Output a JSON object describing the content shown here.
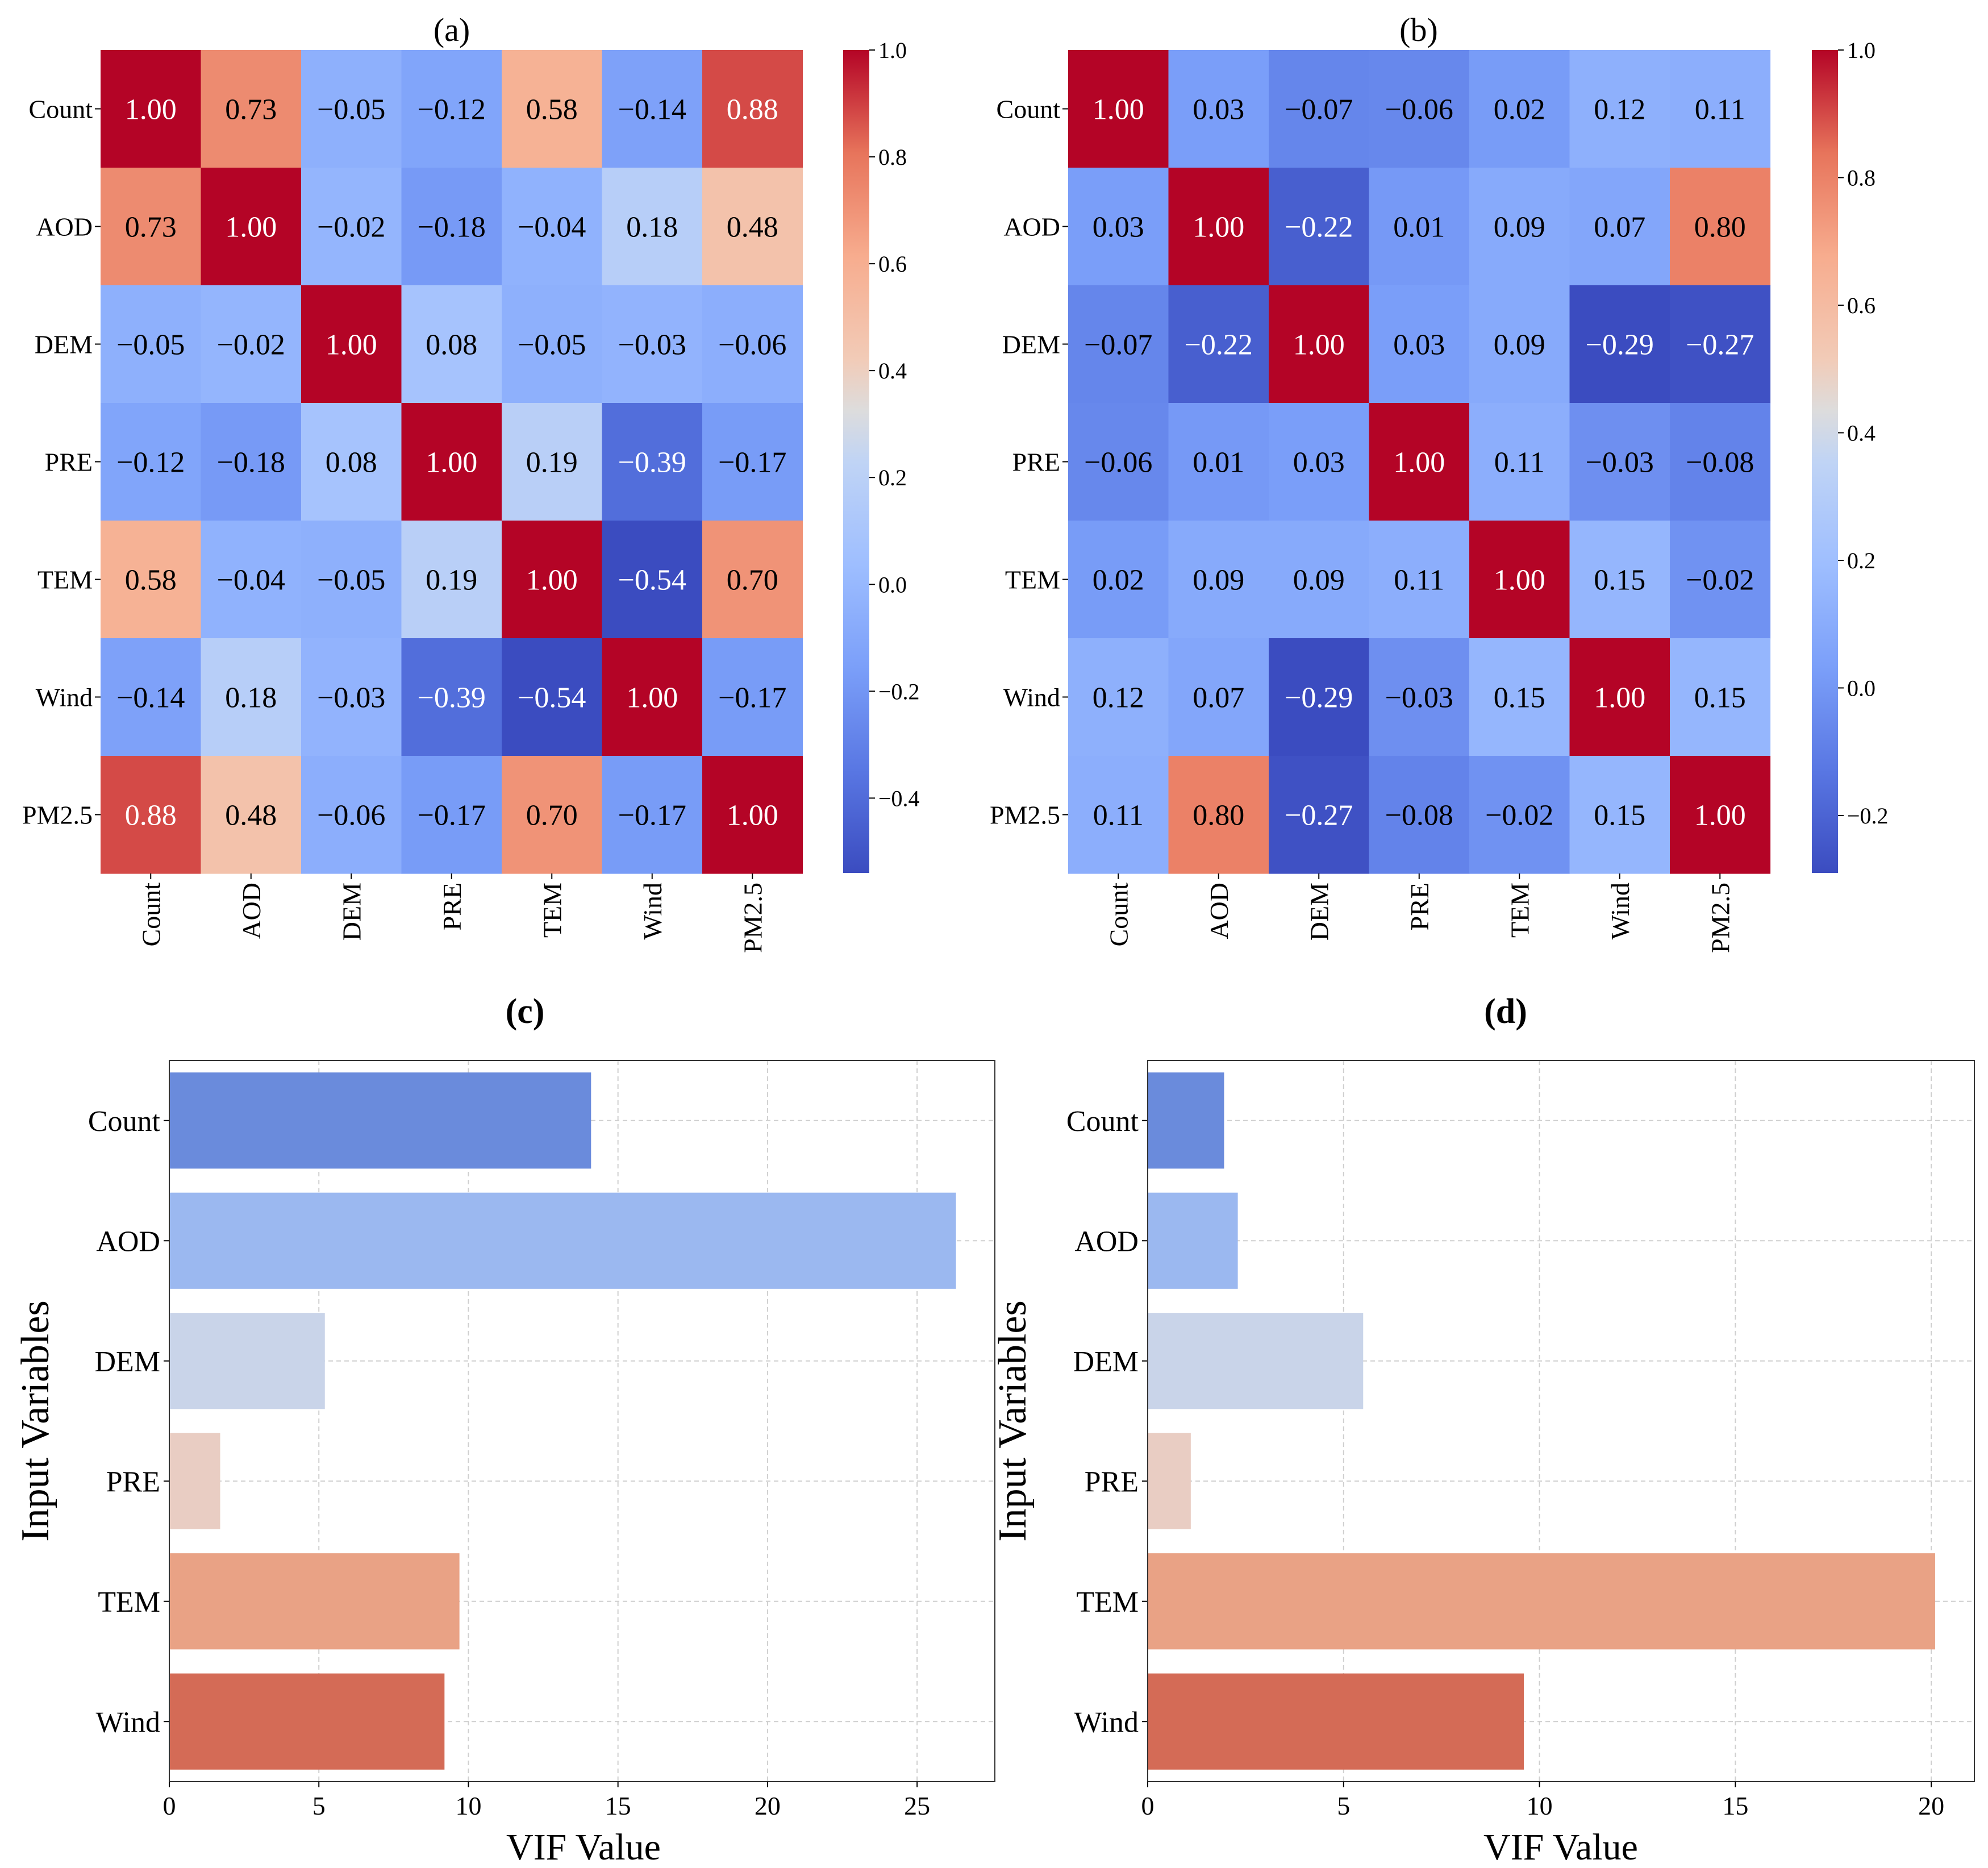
{
  "chart_data": [
    {
      "id": "a",
      "panel_label": "(a)",
      "type": "heatmap",
      "variables": [
        "Count",
        "AOD",
        "DEM",
        "PRE",
        "TEM",
        "Wind",
        "PM2.5"
      ],
      "values": [
        [
          1.0,
          0.73,
          -0.05,
          -0.12,
          0.58,
          -0.14,
          0.88
        ],
        [
          0.73,
          1.0,
          -0.02,
          -0.18,
          -0.04,
          0.18,
          0.48
        ],
        [
          -0.05,
          -0.02,
          1.0,
          0.08,
          -0.05,
          -0.03,
          -0.06
        ],
        [
          -0.12,
          -0.18,
          0.08,
          1.0,
          0.19,
          -0.39,
          -0.17
        ],
        [
          0.58,
          -0.04,
          -0.05,
          0.19,
          1.0,
          -0.54,
          0.7
        ],
        [
          -0.14,
          0.18,
          -0.03,
          -0.39,
          -0.54,
          1.0,
          -0.17
        ],
        [
          0.88,
          0.48,
          -0.06,
          -0.17,
          0.7,
          -0.17,
          1.0
        ]
      ],
      "colorbar": {
        "vmin": -0.54,
        "vmax": 1.0,
        "ticks": [
          -0.4,
          -0.2,
          0.0,
          0.2,
          0.4,
          0.6,
          0.8,
          1.0
        ],
        "tick_labels": [
          "−0.4",
          "−0.2",
          "0.0",
          "0.2",
          "0.4",
          "0.6",
          "0.8",
          "1.0"
        ],
        "colormap": "coolwarm"
      }
    },
    {
      "id": "b",
      "panel_label": "(b)",
      "type": "heatmap",
      "variables": [
        "Count",
        "AOD",
        "DEM",
        "PRE",
        "TEM",
        "Wind",
        "PM2.5"
      ],
      "values": [
        [
          1.0,
          0.03,
          -0.07,
          -0.06,
          0.02,
          0.12,
          0.11
        ],
        [
          0.03,
          1.0,
          -0.22,
          0.01,
          0.09,
          0.07,
          0.8
        ],
        [
          -0.07,
          -0.22,
          1.0,
          0.03,
          0.09,
          -0.29,
          -0.27
        ],
        [
          -0.06,
          0.01,
          0.03,
          1.0,
          0.11,
          -0.03,
          -0.08
        ],
        [
          0.02,
          0.09,
          0.09,
          0.11,
          1.0,
          0.15,
          -0.02
        ],
        [
          0.12,
          0.07,
          -0.29,
          -0.03,
          0.15,
          1.0,
          0.15
        ],
        [
          0.11,
          0.8,
          -0.27,
          -0.08,
          -0.02,
          0.15,
          1.0
        ]
      ],
      "colorbar": {
        "vmin": -0.29,
        "vmax": 1.0,
        "ticks": [
          -0.2,
          0.0,
          0.2,
          0.4,
          0.6,
          0.8,
          1.0
        ],
        "tick_labels": [
          "−0.2",
          "0.0",
          "0.2",
          "0.4",
          "0.6",
          "0.8",
          "1.0"
        ],
        "colormap": "coolwarm"
      }
    },
    {
      "id": "c",
      "panel_label": "(c)",
      "type": "bar",
      "orientation": "horizontal",
      "categories": [
        "Count",
        "AOD",
        "DEM",
        "PRE",
        "TEM",
        "Wind"
      ],
      "values": [
        14.1,
        26.3,
        5.2,
        1.7,
        9.7,
        9.2
      ],
      "colors": [
        "#6a8bdc",
        "#9bb8f0",
        "#c9d4e9",
        "#e9cdc3",
        "#e9a285",
        "#d46b56"
      ],
      "xlabel": "VIF Value",
      "ylabel": "Input Variables",
      "xlim": [
        0,
        27.6
      ],
      "xticks": [
        0,
        5,
        10,
        15,
        20,
        25
      ],
      "grid": true
    },
    {
      "id": "d",
      "panel_label": "(d)",
      "type": "bar",
      "orientation": "horizontal",
      "categories": [
        "Count",
        "AOD",
        "DEM",
        "PRE",
        "TEM",
        "Wind"
      ],
      "values": [
        1.95,
        2.3,
        5.5,
        1.1,
        20.1,
        9.6
      ],
      "colors": [
        "#6a8bdc",
        "#9bb8f0",
        "#c9d4e9",
        "#e9cdc3",
        "#e9a285",
        "#d46b56"
      ],
      "xlabel": "VIF Value",
      "ylabel": "Input Variables",
      "xlim": [
        0,
        21.1
      ],
      "xticks": [
        0,
        5,
        10,
        15,
        20
      ],
      "grid": true
    }
  ]
}
